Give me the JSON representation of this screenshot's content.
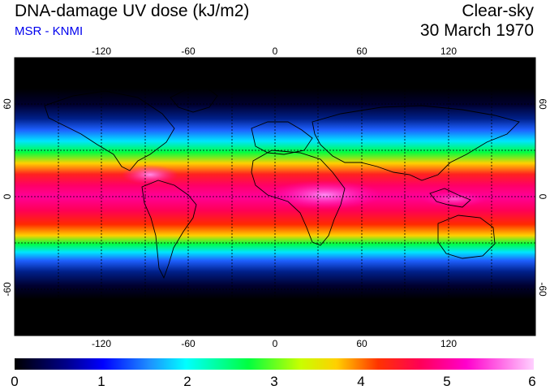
{
  "header": {
    "title": "DNA-damage UV dose (kJ/m2)",
    "credit": "MSR - KNMI",
    "sky_condition": "Clear-sky",
    "date": "30 March 1970"
  },
  "map": {
    "projection": "equirectangular",
    "lon_range": [
      -180,
      180
    ],
    "lat_range": [
      -90,
      90
    ],
    "lon_ticks": [
      "-120",
      "-60",
      "0",
      "60",
      "120"
    ],
    "lat_ticks": [
      "60",
      "0",
      "-60"
    ],
    "graticule": "dashed 30° lines",
    "coastlines": true
  },
  "colorbar": {
    "labels": [
      "0",
      "1",
      "2",
      "3",
      "4",
      "5",
      "6"
    ],
    "min": 0,
    "max": 6,
    "colors": [
      "#000000",
      "#00008b",
      "#1e4bff",
      "#00e5ff",
      "#00ff40",
      "#ffd000",
      "#ff0033",
      "#ff00cc",
      "#ffd0ff"
    ]
  },
  "chart_data": {
    "type": "heatmap",
    "variable": "DNA-damage UV dose (kJ/m2)",
    "colorbar_range": [
      0,
      6
    ],
    "zonal_profile_approx": [
      {
        "lat": 80,
        "value": 0.1
      },
      {
        "lat": 60,
        "value": 0.4
      },
      {
        "lat": 50,
        "value": 1.0
      },
      {
        "lat": 40,
        "value": 2.2
      },
      {
        "lat": 30,
        "value": 3.3
      },
      {
        "lat": 20,
        "value": 4.2
      },
      {
        "lat": 10,
        "value": 4.7
      },
      {
        "lat": 0,
        "value": 5.0
      },
      {
        "lat": -10,
        "value": 4.6
      },
      {
        "lat": -20,
        "value": 3.9
      },
      {
        "lat": -30,
        "value": 3.0
      },
      {
        "lat": -40,
        "value": 2.0
      },
      {
        "lat": -50,
        "value": 1.0
      },
      {
        "lat": -60,
        "value": 0.5
      },
      {
        "lat": -80,
        "value": 0.1
      }
    ]
  }
}
